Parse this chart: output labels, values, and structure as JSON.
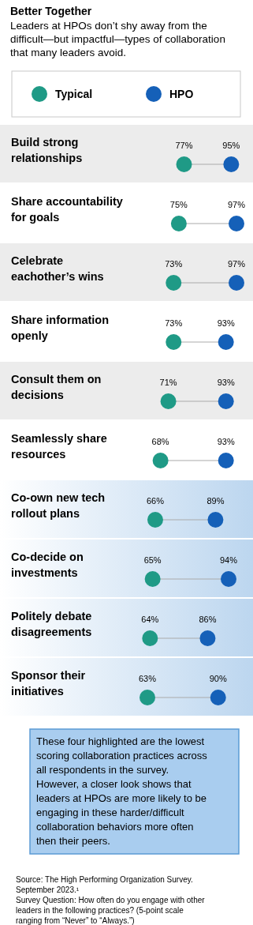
{
  "chart_data": {
    "type": "scatter",
    "orientation": "horizontal",
    "title": "Better Together",
    "subtitle": "Leaders at HPOs don’t shy away from the difficult—but impactful—types of collaboration that many leaders avoid.",
    "categories": [
      "Build strong relationships",
      "Share accountability for goals",
      "Celebrate eachother’s wins",
      "Share information openly",
      "Consult them on decisions",
      "Seamlessly share resources",
      "Co-own new tech rollout plans",
      "Co-decide on investments",
      "Politely debate disagreements",
      "Sponsor their initiatives"
    ],
    "series": [
      {
        "name": "Typical",
        "color": "#1f9a86",
        "values": [
          77,
          75,
          73,
          73,
          71,
          68,
          66,
          65,
          64,
          63
        ],
        "value_labels": [
          "77%",
          "75%",
          "73%",
          "73%",
          "71%",
          "68%",
          "66%",
          "65%",
          "64%",
          "63%"
        ]
      },
      {
        "name": "HPO",
        "color": "#1560b8",
        "values": [
          95,
          97,
          97,
          93,
          93,
          93,
          89,
          94,
          86,
          90
        ],
        "value_labels": [
          "95%",
          "97%",
          "97%",
          "93%",
          "93%",
          "93%",
          "89%",
          "94%",
          "86%",
          "90%"
        ]
      }
    ],
    "marker": "circle",
    "legend": "top",
    "annotations": [
      "These four highlighted are the lowest scoring collaboration practices across all respondents in the survey. However, a closer look shows that leaders at HPOs are more likely to be engaging in these harder/difficult collaboration behaviors more often then their peers.",
      "Source: The High Performing Organization Survey. September 2023.¹",
      "Survey Question: How often do you engage with other leaders in the following practices? (5-point scale ranging from “Never” to “Always.”)"
    ]
  }
}
